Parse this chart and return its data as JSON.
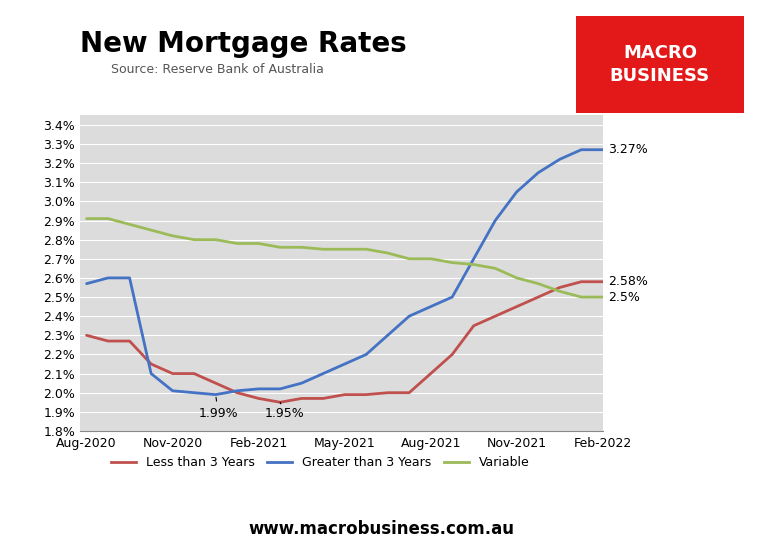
{
  "title": "New Mortgage Rates",
  "source": "Source: Reserve Bank of Australia",
  "website": "www.macrobusiness.com.au",
  "background_color": "#dcdcdc",
  "fig_background": "#ffffff",
  "x_labels": [
    "Aug-2020",
    "Nov-2020",
    "Feb-2021",
    "May-2021",
    "Aug-2021",
    "Nov-2021",
    "Feb-2022"
  ],
  "less_than_3yr": {
    "label": "Less than 3 Years",
    "color": "#c0504d",
    "x": [
      0,
      1,
      2,
      3,
      4,
      5,
      6,
      7,
      8,
      9,
      10,
      11,
      12,
      13,
      14,
      15,
      16,
      17,
      18,
      19,
      20,
      21,
      22,
      23,
      24
    ],
    "y": [
      2.3,
      2.27,
      2.27,
      2.15,
      2.1,
      2.1,
      2.05,
      2.0,
      1.97,
      1.95,
      1.97,
      1.97,
      1.99,
      1.99,
      2.0,
      2.0,
      2.1,
      2.2,
      2.35,
      2.4,
      2.45,
      2.5,
      2.55,
      2.58,
      2.58
    ]
  },
  "greater_than_3yr": {
    "label": "Greater than 3 Years",
    "color": "#4472c4",
    "x": [
      0,
      1,
      2,
      3,
      4,
      5,
      6,
      7,
      8,
      9,
      10,
      11,
      12,
      13,
      14,
      15,
      16,
      17,
      18,
      19,
      20,
      21,
      22,
      23,
      24
    ],
    "y": [
      2.57,
      2.6,
      2.6,
      2.1,
      2.01,
      2.0,
      1.99,
      2.01,
      2.02,
      2.02,
      2.05,
      2.1,
      2.15,
      2.2,
      2.3,
      2.4,
      2.45,
      2.5,
      2.7,
      2.9,
      3.05,
      3.15,
      3.22,
      3.27,
      3.27
    ]
  },
  "variable": {
    "label": "Variable",
    "color": "#9bbb59",
    "x": [
      0,
      1,
      2,
      3,
      4,
      5,
      6,
      7,
      8,
      9,
      10,
      11,
      12,
      13,
      14,
      15,
      16,
      17,
      18,
      19,
      20,
      21,
      22,
      23,
      24
    ],
    "y": [
      2.91,
      2.91,
      2.88,
      2.85,
      2.82,
      2.8,
      2.8,
      2.78,
      2.78,
      2.76,
      2.76,
      2.75,
      2.75,
      2.75,
      2.73,
      2.7,
      2.7,
      2.68,
      2.67,
      2.65,
      2.6,
      2.57,
      2.53,
      2.5,
      2.5
    ]
  },
  "ylim": [
    1.8,
    3.45
  ],
  "yticks": [
    1.8,
    1.9,
    2.0,
    2.1,
    2.2,
    2.3,
    2.4,
    2.5,
    2.6,
    2.7,
    2.8,
    2.9,
    3.0,
    3.1,
    3.2,
    3.3,
    3.4
  ],
  "macro_box_color": "#e31919",
  "macro_text": "MACRO\nBUSINESS"
}
